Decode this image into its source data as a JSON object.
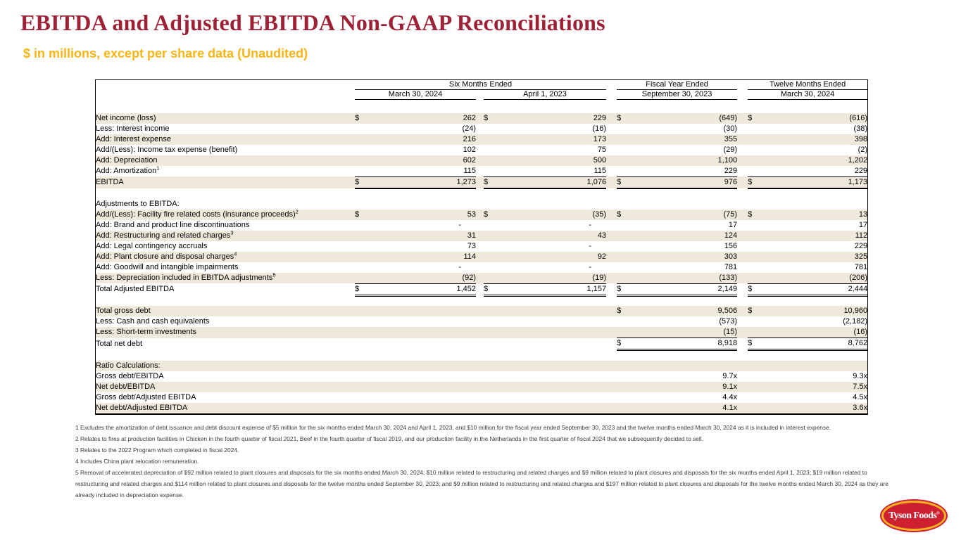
{
  "page": {
    "title": "EBITDA and Adjusted EBITDA Non-GAAP Reconciliations",
    "subtitle": "$ in millions, except per share data (Unaudited)"
  },
  "colors": {
    "title_red": "#9E2235",
    "subtitle_gold": "#F8B515",
    "row_stripe_beige": "#EFE9DB",
    "logo_red": "#CE2030",
    "logo_gold": "#F4B223"
  },
  "table": {
    "header": {
      "six_months": "Six Months Ended",
      "fiscal_year": "Fiscal Year Ended",
      "twelve_months": "Twelve Months Ended",
      "dates": [
        "March 30, 2024",
        "April 1, 2023",
        "September 30, 2023",
        "March 30, 2024"
      ]
    },
    "rows": [
      {
        "label": "Net income (loss)",
        "dollars": [
          1,
          1,
          1,
          1
        ],
        "values": [
          "262",
          "229",
          "(649)",
          "(616)"
        ],
        "bg": "beige"
      },
      {
        "label": "Less: Interest income",
        "values": [
          "(24)",
          "(16)",
          "(30)",
          "(38)"
        ],
        "bg": "white"
      },
      {
        "label": "Add: Interest expense",
        "values": [
          "216",
          "173",
          "355",
          "398"
        ],
        "bg": "beige"
      },
      {
        "label": "Add/(Less): Income tax expense (benefit)",
        "values": [
          "102",
          "75",
          "(29)",
          "(2)"
        ],
        "bg": "white"
      },
      {
        "label": "Add: Depreciation",
        "values": [
          "602",
          "500",
          "1,100",
          "1,202"
        ],
        "bg": "beige"
      },
      {
        "label": "Add: Amortization",
        "sup": "1",
        "values": [
          "115",
          "115",
          "229",
          "229"
        ],
        "bg": "white",
        "rules": [
          "b1",
          "b1",
          "b1",
          "b1"
        ]
      },
      {
        "label": "EBITDA",
        "dollars": [
          1,
          1,
          1,
          1
        ],
        "values": [
          "1,273",
          "1,076",
          "976",
          "1,173"
        ],
        "bg": "beige",
        "rules": [
          "b2",
          "b2",
          "b2",
          "b2"
        ]
      },
      {
        "label": "",
        "bg": "white"
      },
      {
        "label": "Adjustments to EBITDA:",
        "bg": "white"
      },
      {
        "label": "Add/(Less): Facility fire related costs (insurance proceeds)",
        "sup": "2",
        "dollars": [
          1,
          1,
          1,
          1
        ],
        "values": [
          "53",
          "(35)",
          "(75)",
          "13"
        ],
        "bg": "beige"
      },
      {
        "label": "Add: Brand and product line discontinuations",
        "values": [
          "-",
          "-",
          "17",
          "17"
        ],
        "bg": "white"
      },
      {
        "label": "Add: Restructuring and related charges",
        "sup": "3",
        "values": [
          "31",
          "43",
          "124",
          "112"
        ],
        "bg": "beige"
      },
      {
        "label": "Add: Legal contingency accruals",
        "values": [
          "73",
          "-",
          "156",
          "229"
        ],
        "bg": "white"
      },
      {
        "label": "Add: Plant closure and disposal charges",
        "sup": "4",
        "values": [
          "114",
          "92",
          "303",
          "325"
        ],
        "bg": "beige"
      },
      {
        "label": "Add: Goodwill and intangible impairments",
        "values": [
          "-",
          "-",
          "781",
          "781"
        ],
        "bg": "white"
      },
      {
        "label": "Less: Depreciation included in EBITDA adjustments",
        "sup": "5",
        "values": [
          "(92)",
          "(19)",
          "(133)",
          "(206)"
        ],
        "bg": "beige",
        "rules": [
          "b1",
          "b1",
          "b1",
          "b1"
        ]
      },
      {
        "label": "Total Adjusted EBITDA",
        "dollars": [
          1,
          1,
          1,
          1
        ],
        "values": [
          "1,452",
          "1,157",
          "2,149",
          "2,444"
        ],
        "bg": "white",
        "rules": [
          "bd",
          "bd",
          "bd",
          "bd"
        ]
      },
      {
        "label": "",
        "bg": "white"
      },
      {
        "label": "Total gross debt",
        "dollars": [
          0,
          0,
          1,
          1
        ],
        "values": [
          "",
          "",
          "9,506",
          "10,960"
        ],
        "bg": "beige"
      },
      {
        "label": "Less: Cash and cash equivalents",
        "values": [
          "",
          "",
          "(573)",
          "(2,182)"
        ],
        "bg": "white"
      },
      {
        "label": "Less: Short-term investments",
        "values": [
          "",
          "",
          "(15)",
          "(16)"
        ],
        "bg": "beige",
        "rules": [
          "",
          "",
          "b1",
          "b1"
        ]
      },
      {
        "label": "Total net debt",
        "dollars": [
          0,
          0,
          1,
          1
        ],
        "values": [
          "",
          "",
          "8,918",
          "8,762"
        ],
        "bg": "white",
        "rules": [
          "",
          "",
          "bd",
          "bd"
        ]
      },
      {
        "label": "",
        "bg": "white"
      },
      {
        "label": "Ratio Calculations:",
        "bg": "beige"
      },
      {
        "label": "Gross debt/EBITDA",
        "values": [
          "",
          "",
          "9.7x",
          "9.3x"
        ],
        "bg": "white"
      },
      {
        "label": "Net debt/EBITDA",
        "values": [
          "",
          "",
          "9.1x",
          "7.5x"
        ],
        "bg": "beige"
      },
      {
        "label": "Gross debt/Adjusted EBITDA",
        "values": [
          "",
          "",
          "4.4x",
          "4.5x"
        ],
        "bg": "white"
      },
      {
        "label": "Net debt/Adjusted EBITDA",
        "values": [
          "",
          "",
          "4.1x",
          "3.6x"
        ],
        "bg": "beige"
      }
    ]
  },
  "footnotes": [
    "1 Excludes the amortization of debt issuance and debt discount expense of $5 million for the six months ended March 30, 2024 and April 1, 2023, and $10 million for the fiscal year ended September 30, 2023 and the twelve months ended March 30, 2024 as it is included in interest expense.",
    "2 Relates to fires at production facilities in Chicken in the fourth quarter of fiscal 2021, Beef in the fourth quarter of fiscal 2019, and our production facility in the Netherlands in the first quarter of fiscal 2024 that we subsequently decided to sell.",
    "3 Relates to the 2022 Program which completed in fiscal 2024.",
    "4 Includes China plant relocation remuneration.",
    "5 Removal of accelerated depreciation of $92 million related to plant closures and disposals for the six months ended March 30, 2024; $10 million related to restructuring and related charges and $9 million related to plant closures and disposals for the six months ended April 1, 2023; $19 million related to restructuring and related charges and $114 million related to plant closures and disposals for the twelve months ended September 30, 2023; and $9 million related to restructuring and related charges and $197 million related to plant closures and disposals for the twelve months ended March 30, 2024 as they are already included in depreciation expense."
  ],
  "logo": {
    "text": "Tyson Foods",
    "reg": "®"
  }
}
